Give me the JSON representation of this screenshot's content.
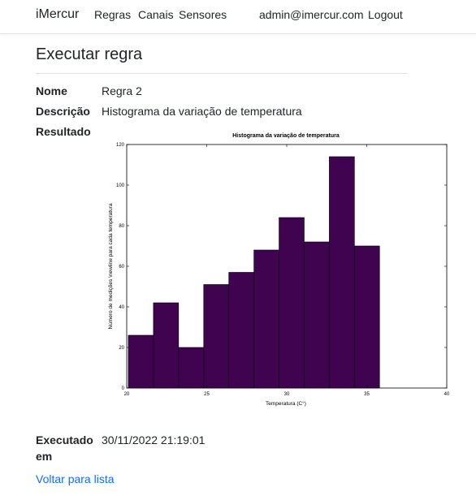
{
  "navbar": {
    "brand": "iMercur",
    "links": [
      "Regras",
      "Canais",
      "Sensores"
    ],
    "user": "admin@imercur.com",
    "logout": "Logout"
  },
  "page": {
    "title": "Executar regra"
  },
  "details": {
    "nome_label": "Nome",
    "nome_value": "Regra 2",
    "descricao_label": "Descrição",
    "descricao_value": "Histograma da variação de temperatura",
    "resultado_label": "Resultado",
    "executado_label_line1": "Executado",
    "executado_label_line2": "em",
    "executado_value": "30/11/2022 21:19:01"
  },
  "back_link": "Voltar para lista",
  "colors": {
    "bar_fill": "#3f0350",
    "link": "#0d6efd"
  },
  "chart_data": {
    "type": "bar",
    "title": "Histograma da variação de temperatura",
    "xlabel": "Temperatura (C°)",
    "ylabel": "Número de medições \\newline para cada temperatura",
    "xlim": [
      20,
      40
    ],
    "ylim": [
      0,
      120
    ],
    "xticks": [
      20,
      25,
      30,
      35,
      40
    ],
    "yticks": [
      0,
      20,
      40,
      60,
      80,
      100,
      120
    ],
    "bin_edges": [
      20.1,
      21.67,
      23.24,
      24.81,
      26.38,
      27.95,
      29.52,
      31.09,
      32.66,
      34.23,
      35.8
    ],
    "values": [
      26,
      42,
      20,
      51,
      57,
      68,
      84,
      72,
      114,
      70
    ]
  }
}
